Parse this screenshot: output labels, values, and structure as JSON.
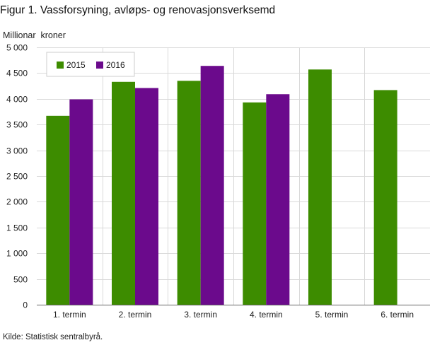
{
  "chart_data": {
    "type": "bar",
    "title": "Figur 1. Vassforsyning, avløps- og renovasjonsverksemd",
    "ylabel": "Millionar  kroner",
    "xlabel": "",
    "categories": [
      "1. termin",
      "2. termin",
      "3. termin",
      "4. termin",
      "5. termin",
      "6. termin"
    ],
    "series": [
      {
        "name": "2015",
        "color": "#3d8c00",
        "values": [
          3670,
          4330,
          4350,
          3930,
          4570,
          4170
        ]
      },
      {
        "name": "2016",
        "color": "#6b0a8c",
        "values": [
          3990,
          4210,
          4640,
          4090,
          null,
          null
        ]
      }
    ],
    "ylim": [
      0,
      5000
    ],
    "yticks": [
      0,
      500,
      1000,
      1500,
      2000,
      2500,
      3000,
      3500,
      4000,
      4500,
      5000
    ],
    "ytick_labels": [
      "0",
      "500",
      "1 000",
      "1 500",
      "2 000",
      "2 500",
      "3 000",
      "3 500",
      "4 000",
      "4 500",
      "5 000"
    ],
    "grid": true,
    "legend_position": "top-left",
    "source": "Kilde: Statistisk sentralbyrå."
  }
}
